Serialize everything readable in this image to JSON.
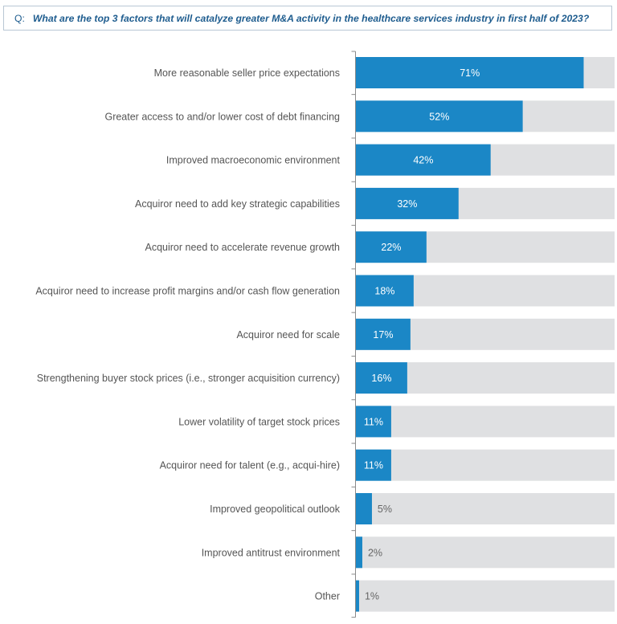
{
  "question": {
    "prefix": "Q:",
    "text": "What are the top 3 factors that will catalyze greater M&A activity in the healthcare services industry in first half of 2023?"
  },
  "colors": {
    "bar": "#1b87c6",
    "track": "#dfe0e2",
    "label_inside": "#ffffff",
    "label_outside": "#666666",
    "category_text": "#555555",
    "axis": "#8a8a8a"
  },
  "chart_data": {
    "type": "bar",
    "orientation": "horizontal",
    "categories": [
      "More reasonable seller price expectations",
      "Greater access to and/or lower cost of debt financing",
      "Improved macroeconomic environment",
      "Acquiror need to add key strategic capabilities",
      "Acquiror need to accelerate revenue growth",
      "Acquiror need to increase profit margins and/or cash flow generation",
      "Acquiror need for scale",
      "Strengthening buyer stock prices  (i.e., stronger acquisition currency)",
      "Lower volatility of target stock prices",
      "Acquiror need for talent (e.g., acqui-hire)",
      "Improved geopolitical outlook",
      "Improved antitrust environment",
      "Other"
    ],
    "values": [
      71,
      52,
      42,
      32,
      22,
      18,
      17,
      16,
      11,
      11,
      5,
      2,
      1
    ],
    "value_labels": [
      "71%",
      "52%",
      "42%",
      "32%",
      "22%",
      "18%",
      "17%",
      "16%",
      "11%",
      "11%",
      "5%",
      "2%",
      "1%"
    ],
    "xlim": [
      0,
      80
    ],
    "grid": false,
    "legend": "none"
  }
}
